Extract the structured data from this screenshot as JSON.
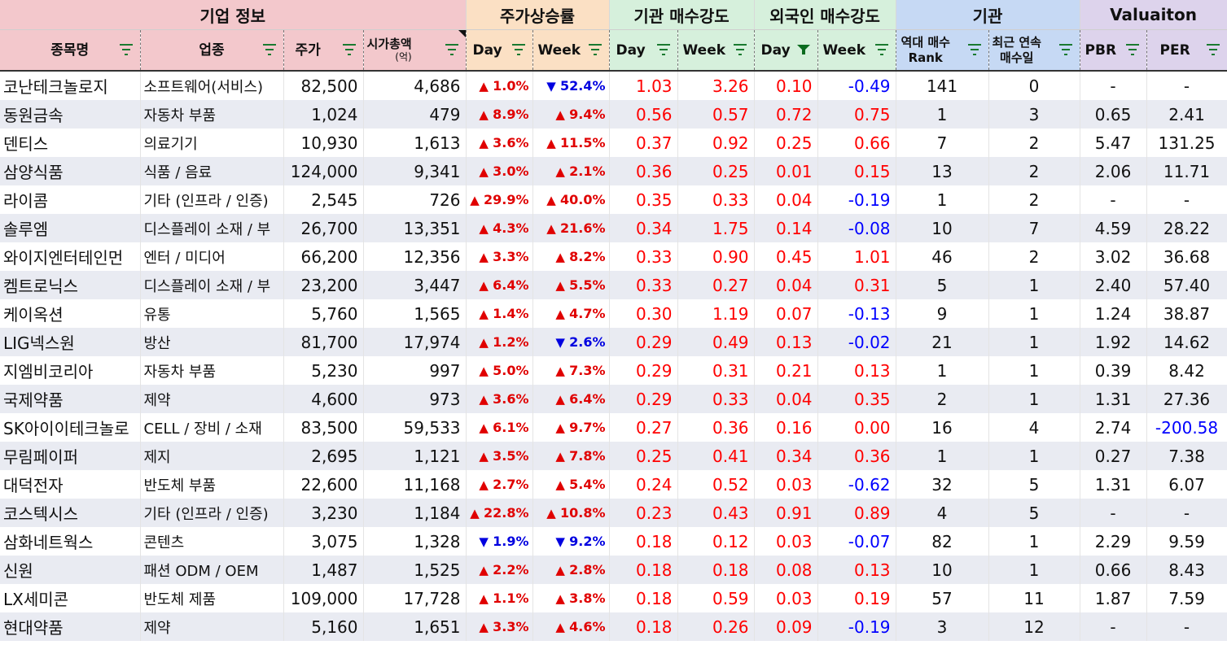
{
  "groups": [
    {
      "label": "기업 정보",
      "color": "#f3c8cc",
      "span": 4
    },
    {
      "label": "주가상승률",
      "color": "#fbe0c4",
      "span": 2
    },
    {
      "label": "기관 매수강도",
      "color": "#d6f0dc",
      "span": 2
    },
    {
      "label": "외국인 매수강도",
      "color": "#d6f0dc",
      "span": 2
    },
    {
      "label": "기관",
      "color": "#c6d9f4",
      "span": 2
    },
    {
      "label": "Valuaiton",
      "color": "#ddd3ec",
      "span": 2
    }
  ],
  "headers": {
    "name": "종목명",
    "sector": "업종",
    "price": "주가",
    "cap_line1": "시가총액",
    "cap_line2": "(억)",
    "ret_day": "Day",
    "ret_week": "Week",
    "inst_day": "Day",
    "inst_week": "Week",
    "for_day": "Day",
    "for_week": "Week",
    "rank_line1": "역대 매수",
    "rank_line2": "Rank",
    "streak_line1": "최근 연속",
    "streak_line2": "매수일",
    "pbr": "PBR",
    "per": "PER"
  },
  "colors": {
    "up": "#e00000",
    "down": "#0000e0",
    "filter_icon": "#1a7a30",
    "filter_active_icon": "#0b6b1f"
  },
  "rows": [
    {
      "name": "코난테크놀로지",
      "sector": "소프트웨어(서비스)",
      "price": "82,500",
      "cap": "4,686",
      "ret_day": {
        "dir": "up",
        "v": "1.0%"
      },
      "ret_week": {
        "dir": "down",
        "v": "52.4%"
      },
      "inst_day": "1.03",
      "inst_week": "3.26",
      "for_day": "0.10",
      "for_week": "-0.49",
      "rank": "141",
      "streak": "0",
      "pbr": "-",
      "per": "-"
    },
    {
      "name": "동원금속",
      "sector": "자동차 부품",
      "price": "1,024",
      "cap": "479",
      "ret_day": {
        "dir": "up",
        "v": "8.9%"
      },
      "ret_week": {
        "dir": "up",
        "v": "9.4%"
      },
      "inst_day": "0.56",
      "inst_week": "0.57",
      "for_day": "0.72",
      "for_week": "0.75",
      "rank": "1",
      "streak": "3",
      "pbr": "0.65",
      "per": "2.41"
    },
    {
      "name": "덴티스",
      "sector": "의료기기",
      "price": "10,930",
      "cap": "1,613",
      "ret_day": {
        "dir": "up",
        "v": "3.6%"
      },
      "ret_week": {
        "dir": "up",
        "v": "11.5%"
      },
      "inst_day": "0.37",
      "inst_week": "0.92",
      "for_day": "0.25",
      "for_week": "0.66",
      "rank": "7",
      "streak": "2",
      "pbr": "5.47",
      "per": "131.25"
    },
    {
      "name": "삼양식품",
      "sector": "식품 / 음료",
      "price": "124,000",
      "cap": "9,341",
      "ret_day": {
        "dir": "up",
        "v": "3.0%"
      },
      "ret_week": {
        "dir": "up",
        "v": "2.1%"
      },
      "inst_day": "0.36",
      "inst_week": "0.25",
      "for_day": "0.01",
      "for_week": "0.15",
      "rank": "13",
      "streak": "2",
      "pbr": "2.06",
      "per": "11.71"
    },
    {
      "name": "라이콤",
      "sector": "기타 (인프라 / 인증)",
      "price": "2,545",
      "cap": "726",
      "ret_day": {
        "dir": "up",
        "v": "29.9%"
      },
      "ret_week": {
        "dir": "up",
        "v": "40.0%"
      },
      "inst_day": "0.35",
      "inst_week": "0.33",
      "for_day": "0.04",
      "for_week": "-0.19",
      "rank": "1",
      "streak": "2",
      "pbr": "-",
      "per": "-"
    },
    {
      "name": "솔루엠",
      "sector": "디스플레이 소재 / 부",
      "price": "26,700",
      "cap": "13,351",
      "ret_day": {
        "dir": "up",
        "v": "4.3%"
      },
      "ret_week": {
        "dir": "up",
        "v": "21.6%"
      },
      "inst_day": "0.34",
      "inst_week": "1.75",
      "for_day": "0.14",
      "for_week": "-0.08",
      "rank": "10",
      "streak": "7",
      "pbr": "4.59",
      "per": "28.22"
    },
    {
      "name": "와이지엔터테인먼",
      "sector": "엔터 / 미디어",
      "price": "66,200",
      "cap": "12,356",
      "ret_day": {
        "dir": "up",
        "v": "3.3%"
      },
      "ret_week": {
        "dir": "up",
        "v": "8.2%"
      },
      "inst_day": "0.33",
      "inst_week": "0.90",
      "for_day": "0.45",
      "for_week": "1.01",
      "rank": "46",
      "streak": "2",
      "pbr": "3.02",
      "per": "36.68"
    },
    {
      "name": "켐트로닉스",
      "sector": "디스플레이 소재 / 부",
      "price": "23,200",
      "cap": "3,447",
      "ret_day": {
        "dir": "up",
        "v": "6.4%"
      },
      "ret_week": {
        "dir": "up",
        "v": "5.5%"
      },
      "inst_day": "0.33",
      "inst_week": "0.27",
      "for_day": "0.04",
      "for_week": "0.31",
      "rank": "5",
      "streak": "1",
      "pbr": "2.40",
      "per": "57.40"
    },
    {
      "name": "케이옥션",
      "sector": "유통",
      "price": "5,760",
      "cap": "1,565",
      "ret_day": {
        "dir": "up",
        "v": "1.4%"
      },
      "ret_week": {
        "dir": "up",
        "v": "4.7%"
      },
      "inst_day": "0.30",
      "inst_week": "1.19",
      "for_day": "0.07",
      "for_week": "-0.13",
      "rank": "9",
      "streak": "1",
      "pbr": "1.24",
      "per": "38.87"
    },
    {
      "name": "LIG넥스원",
      "sector": "방산",
      "price": "81,700",
      "cap": "17,974",
      "ret_day": {
        "dir": "up",
        "v": "1.2%"
      },
      "ret_week": {
        "dir": "down",
        "v": "2.6%"
      },
      "inst_day": "0.29",
      "inst_week": "0.49",
      "for_day": "0.13",
      "for_week": "-0.02",
      "rank": "21",
      "streak": "1",
      "pbr": "1.92",
      "per": "14.62"
    },
    {
      "name": "지엠비코리아",
      "sector": "자동차 부품",
      "price": "5,230",
      "cap": "997",
      "ret_day": {
        "dir": "up",
        "v": "5.0%"
      },
      "ret_week": {
        "dir": "up",
        "v": "7.3%"
      },
      "inst_day": "0.29",
      "inst_week": "0.31",
      "for_day": "0.21",
      "for_week": "0.13",
      "rank": "1",
      "streak": "1",
      "pbr": "0.39",
      "per": "8.42"
    },
    {
      "name": "국제약품",
      "sector": "제약",
      "price": "4,600",
      "cap": "973",
      "ret_day": {
        "dir": "up",
        "v": "3.6%"
      },
      "ret_week": {
        "dir": "up",
        "v": "6.4%"
      },
      "inst_day": "0.29",
      "inst_week": "0.33",
      "for_day": "0.04",
      "for_week": "0.35",
      "rank": "2",
      "streak": "1",
      "pbr": "1.31",
      "per": "27.36"
    },
    {
      "name": "SK아이이테크놀로",
      "sector": "CELL / 장비 / 소재",
      "price": "83,500",
      "cap": "59,533",
      "ret_day": {
        "dir": "up",
        "v": "6.1%"
      },
      "ret_week": {
        "dir": "up",
        "v": "9.7%"
      },
      "inst_day": "0.27",
      "inst_week": "0.36",
      "for_day": "0.16",
      "for_week": "0.00",
      "rank": "16",
      "streak": "4",
      "pbr": "2.74",
      "per": "-200.58"
    },
    {
      "name": "무림페이퍼",
      "sector": "제지",
      "price": "2,695",
      "cap": "1,121",
      "ret_day": {
        "dir": "up",
        "v": "3.5%"
      },
      "ret_week": {
        "dir": "up",
        "v": "7.8%"
      },
      "inst_day": "0.25",
      "inst_week": "0.41",
      "for_day": "0.34",
      "for_week": "0.36",
      "rank": "1",
      "streak": "1",
      "pbr": "0.27",
      "per": "7.38"
    },
    {
      "name": "대덕전자",
      "sector": "반도체 부품",
      "price": "22,600",
      "cap": "11,168",
      "ret_day": {
        "dir": "up",
        "v": "2.7%"
      },
      "ret_week": {
        "dir": "up",
        "v": "5.4%"
      },
      "inst_day": "0.24",
      "inst_week": "0.52",
      "for_day": "0.03",
      "for_week": "-0.62",
      "rank": "32",
      "streak": "5",
      "pbr": "1.31",
      "per": "6.07"
    },
    {
      "name": "코스텍시스",
      "sector": "기타 (인프라 / 인증)",
      "price": "3,230",
      "cap": "1,184",
      "ret_day": {
        "dir": "up",
        "v": "22.8%"
      },
      "ret_week": {
        "dir": "up",
        "v": "10.8%"
      },
      "inst_day": "0.23",
      "inst_week": "0.43",
      "for_day": "0.91",
      "for_week": "0.89",
      "rank": "4",
      "streak": "5",
      "pbr": "-",
      "per": "-"
    },
    {
      "name": "삼화네트웍스",
      "sector": "콘텐츠",
      "price": "3,075",
      "cap": "1,328",
      "ret_day": {
        "dir": "down",
        "v": "1.9%"
      },
      "ret_week": {
        "dir": "down",
        "v": "9.2%"
      },
      "inst_day": "0.18",
      "inst_week": "0.12",
      "for_day": "0.03",
      "for_week": "-0.07",
      "rank": "82",
      "streak": "1",
      "pbr": "2.29",
      "per": "9.59"
    },
    {
      "name": "신원",
      "sector": "패션 ODM / OEM",
      "price": "1,487",
      "cap": "1,525",
      "ret_day": {
        "dir": "up",
        "v": "2.2%"
      },
      "ret_week": {
        "dir": "up",
        "v": "2.8%"
      },
      "inst_day": "0.18",
      "inst_week": "0.18",
      "for_day": "0.08",
      "for_week": "0.13",
      "rank": "10",
      "streak": "1",
      "pbr": "0.66",
      "per": "8.43"
    },
    {
      "name": "LX세미콘",
      "sector": "반도체 제품",
      "price": "109,000",
      "cap": "17,728",
      "ret_day": {
        "dir": "up",
        "v": "1.1%"
      },
      "ret_week": {
        "dir": "up",
        "v": "3.8%"
      },
      "inst_day": "0.18",
      "inst_week": "0.59",
      "for_day": "0.03",
      "for_week": "0.19",
      "rank": "57",
      "streak": "11",
      "pbr": "1.87",
      "per": "7.59"
    },
    {
      "name": "현대약품",
      "sector": "제약",
      "price": "5,160",
      "cap": "1,651",
      "ret_day": {
        "dir": "up",
        "v": "3.3%"
      },
      "ret_week": {
        "dir": "up",
        "v": "4.6%"
      },
      "inst_day": "0.18",
      "inst_week": "0.26",
      "for_day": "0.09",
      "for_week": "-0.19",
      "rank": "3",
      "streak": "12",
      "pbr": "-",
      "per": "-"
    }
  ]
}
